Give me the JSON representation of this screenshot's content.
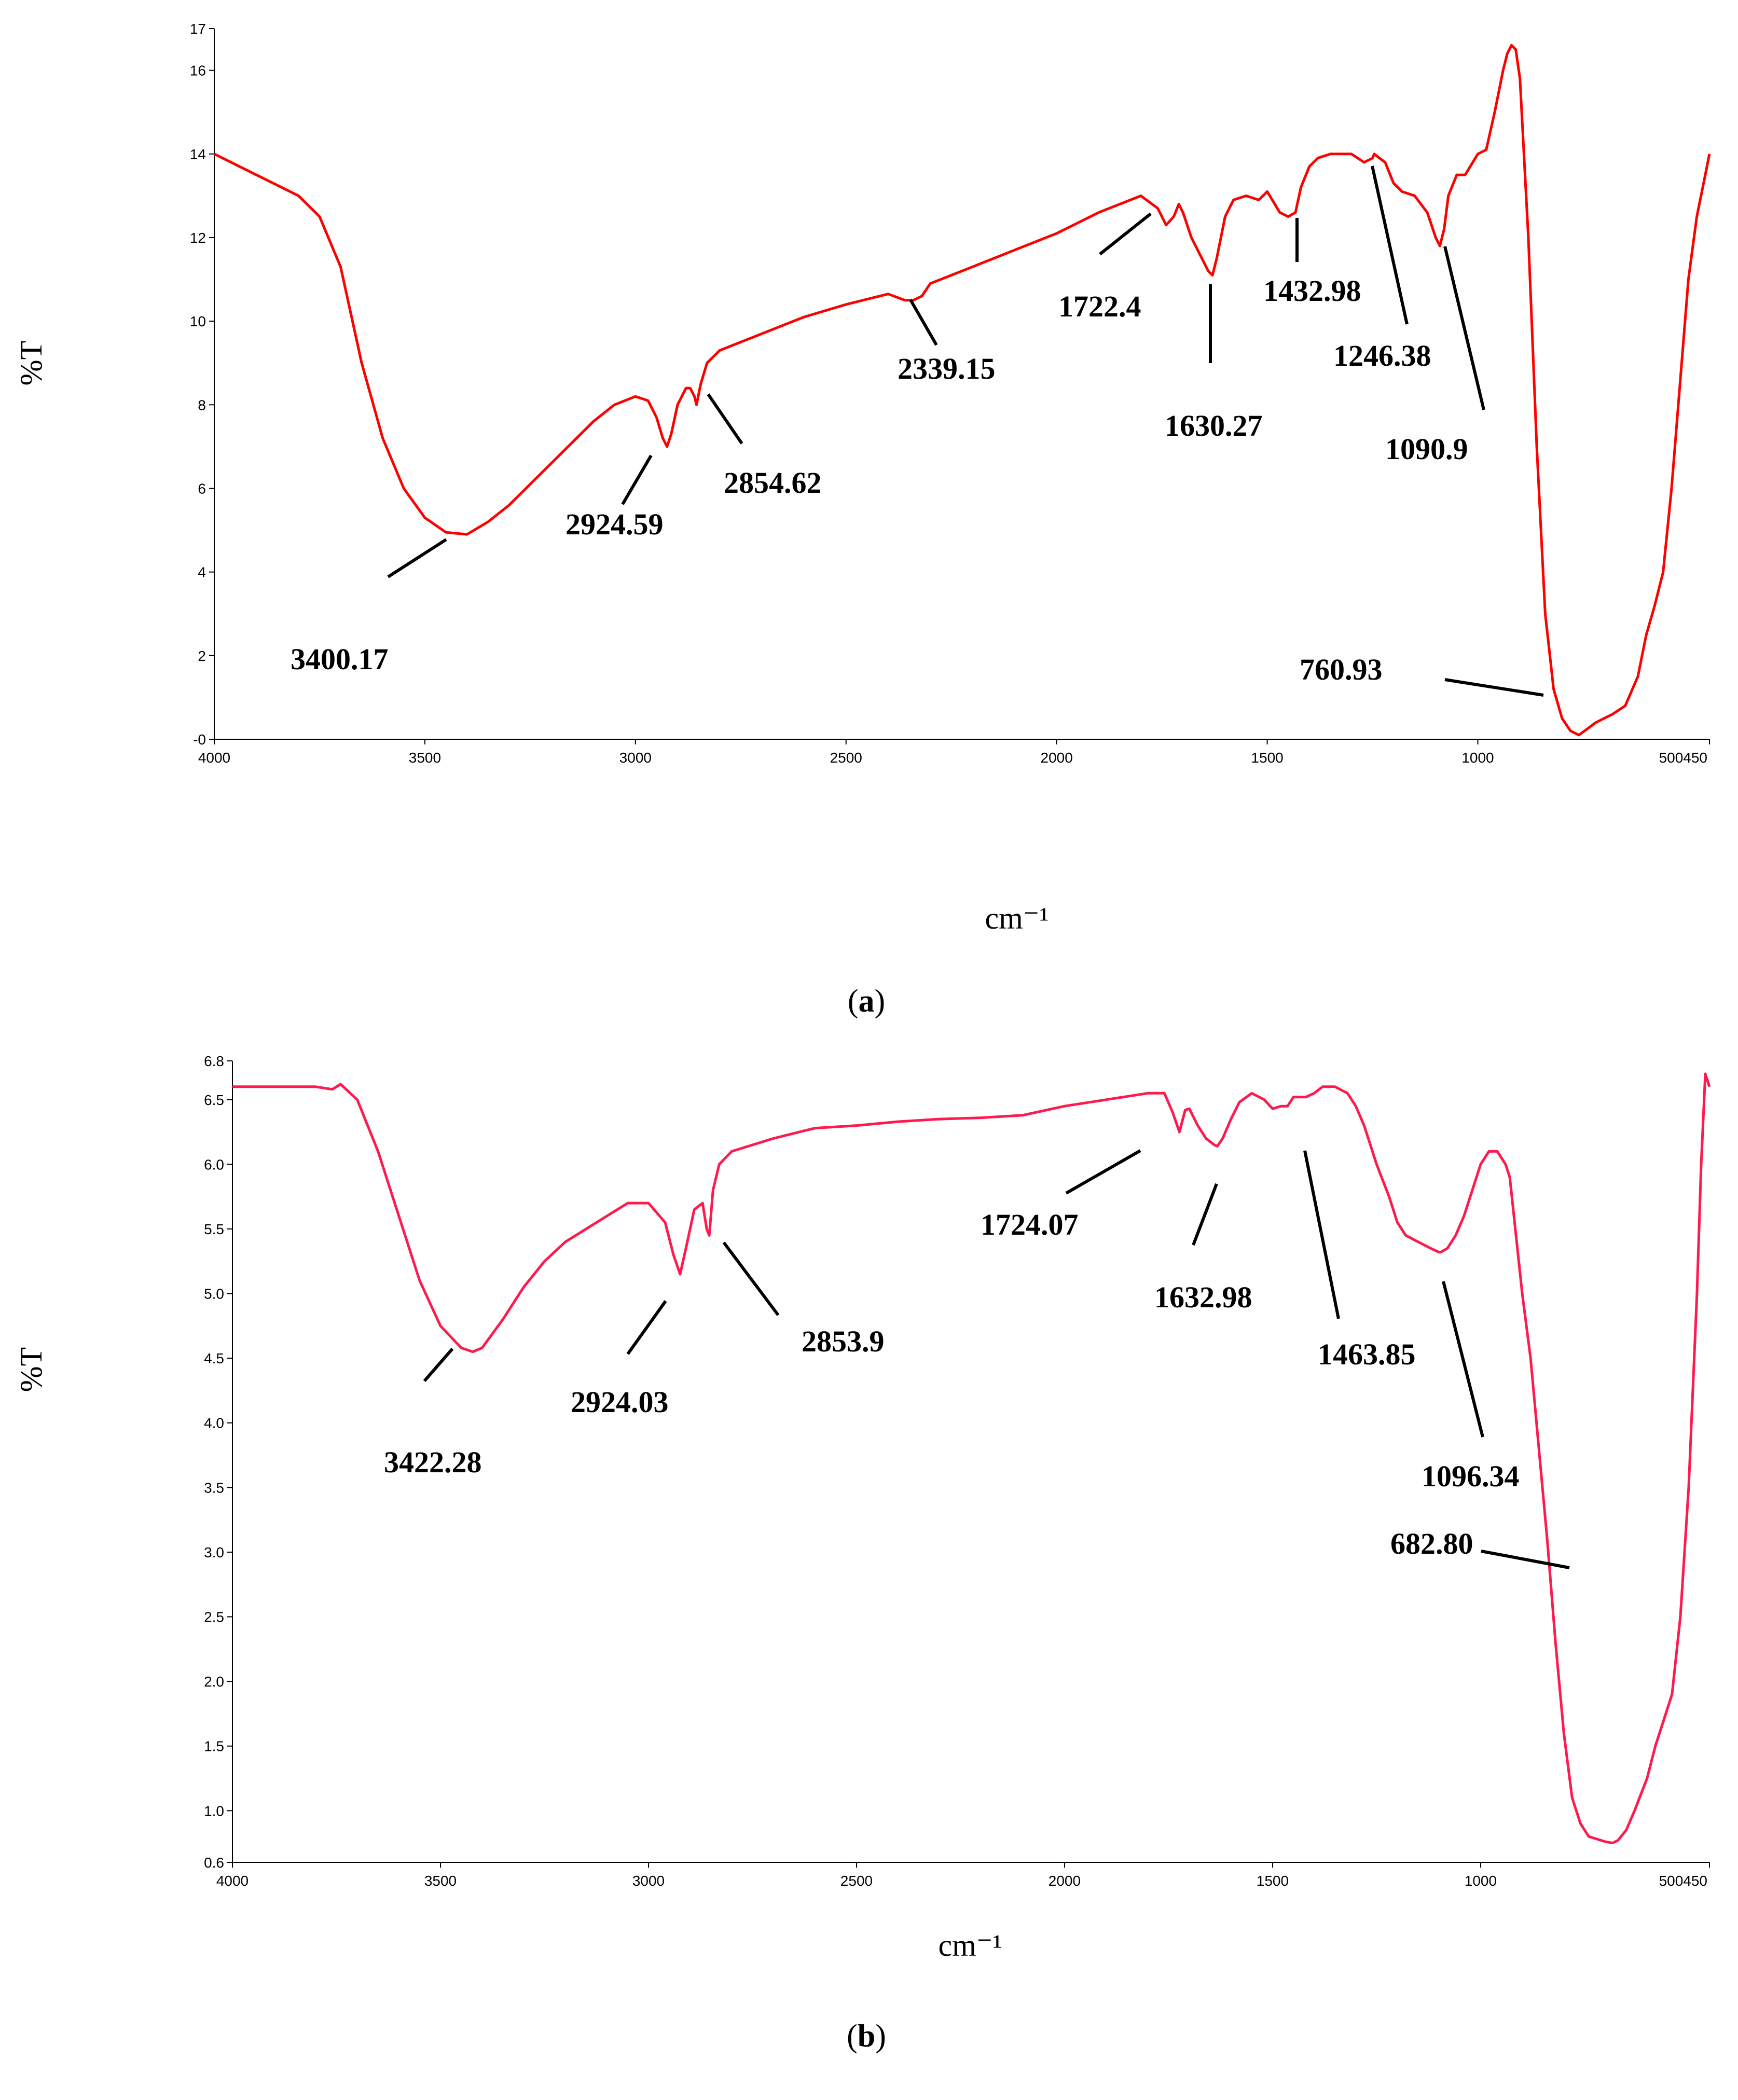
{
  "panel_labels": {
    "a": "a",
    "b": "b",
    "open": "(",
    "close": ")"
  },
  "chart_data": [
    {
      "type": "line",
      "panel": "a",
      "title": "",
      "xlabel": "cm⁻¹",
      "ylabel": "%T",
      "xlim": [
        4000,
        450
      ],
      "ylim": [
        0,
        17
      ],
      "x_ticks": [
        4000,
        3500,
        3000,
        2500,
        2000,
        1500,
        1000,
        500450
      ],
      "x_tick_labels": [
        "4000",
        "3500",
        "3000",
        "2500",
        "2000",
        "1500",
        "1000",
        "500450"
      ],
      "y_ticks": [
        0,
        2,
        4,
        6,
        8,
        10,
        12,
        14,
        16,
        17
      ],
      "y_tick_labels": [
        "-0",
        "2",
        "4",
        "6",
        "8",
        "10",
        "12",
        "14",
        "16",
        "17"
      ],
      "grid": false,
      "color": "#ff0000",
      "series": [
        {
          "x": [
            4000,
            3900,
            3800,
            3750,
            3700,
            3650,
            3600,
            3550,
            3500,
            3450,
            3400,
            3350,
            3300,
            3250,
            3200,
            3150,
            3100,
            3050,
            3000,
            2970,
            2950,
            2935,
            2925,
            2915,
            2900,
            2880,
            2870,
            2860,
            2855,
            2845,
            2830,
            2800,
            2700,
            2600,
            2500,
            2400,
            2360,
            2340,
            2320,
            2300,
            2200,
            2100,
            2000,
            1900,
            1800,
            1760,
            1740,
            1722,
            1710,
            1700,
            1680,
            1660,
            1640,
            1630,
            1620,
            1600,
            1580,
            1550,
            1520,
            1500,
            1470,
            1450,
            1433,
            1420,
            1400,
            1380,
            1350,
            1300,
            1270,
            1250,
            1246,
            1240,
            1220,
            1200,
            1180,
            1150,
            1120,
            1100,
            1090,
            1080,
            1070,
            1050,
            1030,
            1000,
            980,
            960,
            940,
            930,
            920,
            910,
            900,
            880,
            860,
            840,
            820,
            800,
            780,
            760,
            740,
            720,
            700,
            680,
            650,
            620,
            600,
            580,
            560,
            540,
            520,
            500,
            480,
            460,
            450
          ],
          "y": [
            14.0,
            13.5,
            13.0,
            12.5,
            11.3,
            9.0,
            7.2,
            6.0,
            5.3,
            4.95,
            4.9,
            5.2,
            5.6,
            6.1,
            6.6,
            7.1,
            7.6,
            8.0,
            8.2,
            8.1,
            7.7,
            7.2,
            7.0,
            7.3,
            8.0,
            8.4,
            8.4,
            8.2,
            8.0,
            8.5,
            9.0,
            9.3,
            9.7,
            10.1,
            10.4,
            10.65,
            10.5,
            10.5,
            10.6,
            10.9,
            11.3,
            11.7,
            12.1,
            12.6,
            13.0,
            12.7,
            12.3,
            12.5,
            12.8,
            12.6,
            12.0,
            11.6,
            11.2,
            11.1,
            11.5,
            12.5,
            12.9,
            13.0,
            12.9,
            13.1,
            12.6,
            12.5,
            12.6,
            13.2,
            13.7,
            13.9,
            14.0,
            14.0,
            13.8,
            13.9,
            14.0,
            13.95,
            13.8,
            13.3,
            13.1,
            13.0,
            12.6,
            12.0,
            11.8,
            12.2,
            13.0,
            13.5,
            13.5,
            14.0,
            14.1,
            15.0,
            16.0,
            16.4,
            16.6,
            16.5,
            15.8,
            12.0,
            7.0,
            3.0,
            1.2,
            0.5,
            0.2,
            0.1,
            0.25,
            0.4,
            0.5,
            0.6,
            0.8,
            1.5,
            2.5,
            3.2,
            4.0,
            6.0,
            8.5,
            11.0,
            12.5,
            13.5,
            14.0
          ]
        }
      ],
      "annotations": [
        {
          "text": "3400.17"
        },
        {
          "text": "2924.59"
        },
        {
          "text": "2854.62"
        },
        {
          "text": "2339.15"
        },
        {
          "text": "1722.4"
        },
        {
          "text": "1630.27"
        },
        {
          "text": "1432.98"
        },
        {
          "text": "1246.38"
        },
        {
          "text": "1090.9"
        },
        {
          "text": "760.93"
        }
      ]
    },
    {
      "type": "line",
      "panel": "b",
      "title": "",
      "xlabel": "cm⁻¹",
      "ylabel": "%T",
      "xlim": [
        4000,
        450
      ],
      "ylim": [
        0.6,
        6.8
      ],
      "x_ticks": [
        4000,
        3500,
        3000,
        2500,
        2000,
        1500,
        1000,
        500450
      ],
      "x_tick_labels": [
        "4000",
        "3500",
        "3000",
        "2500",
        "2000",
        "1500",
        "1000",
        "500450"
      ],
      "y_ticks": [
        0.6,
        1.0,
        1.5,
        2.0,
        2.5,
        3.0,
        3.5,
        4.0,
        4.5,
        5.0,
        5.5,
        6.0,
        6.5,
        6.8
      ],
      "y_tick_labels": [
        "0.6",
        "1.0",
        "1.5",
        "2.0",
        "2.5",
        "3.0",
        "3.5",
        "4.0",
        "4.5",
        "5.0",
        "5.5",
        "6.0",
        "6.5",
        "6.8"
      ],
      "grid": false,
      "color": "#ff1a4d",
      "series": [
        {
          "x": [
            4000,
            3900,
            3800,
            3760,
            3740,
            3700,
            3650,
            3600,
            3550,
            3500,
            3450,
            3422,
            3400,
            3350,
            3300,
            3250,
            3200,
            3150,
            3100,
            3050,
            3000,
            2960,
            2940,
            2924,
            2910,
            2890,
            2870,
            2860,
            2854,
            2845,
            2830,
            2800,
            2700,
            2600,
            2500,
            2400,
            2300,
            2200,
            2100,
            2000,
            1900,
            1800,
            1760,
            1740,
            1724,
            1710,
            1700,
            1680,
            1660,
            1640,
            1633,
            1620,
            1600,
            1580,
            1550,
            1520,
            1500,
            1480,
            1464,
            1450,
            1420,
            1400,
            1380,
            1350,
            1320,
            1300,
            1280,
            1250,
            1220,
            1200,
            1180,
            1150,
            1120,
            1100,
            1096,
            1080,
            1060,
            1040,
            1020,
            1000,
            980,
            960,
            940,
            930,
            920,
            910,
            900,
            880,
            860,
            840,
            820,
            800,
            780,
            760,
            740,
            720,
            700,
            683,
            670,
            650,
            630,
            600,
            580,
            560,
            540,
            520,
            500,
            480,
            470,
            460,
            455,
            450
          ],
          "y": [
            6.6,
            6.6,
            6.6,
            6.58,
            6.62,
            6.5,
            6.1,
            5.6,
            5.1,
            4.75,
            4.58,
            4.55,
            4.58,
            4.8,
            5.05,
            5.25,
            5.4,
            5.5,
            5.6,
            5.7,
            5.7,
            5.55,
            5.3,
            5.15,
            5.35,
            5.65,
            5.7,
            5.5,
            5.45,
            5.8,
            6.0,
            6.1,
            6.2,
            6.28,
            6.3,
            6.33,
            6.35,
            6.36,
            6.38,
            6.45,
            6.5,
            6.55,
            6.55,
            6.4,
            6.25,
            6.42,
            6.43,
            6.3,
            6.2,
            6.15,
            6.14,
            6.2,
            6.35,
            6.48,
            6.55,
            6.5,
            6.43,
            6.45,
            6.45,
            6.52,
            6.52,
            6.55,
            6.6,
            6.6,
            6.55,
            6.45,
            6.3,
            6.0,
            5.75,
            5.55,
            5.45,
            5.4,
            5.35,
            5.32,
            5.32,
            5.35,
            5.45,
            5.6,
            5.8,
            6.0,
            6.1,
            6.1,
            6.0,
            5.9,
            5.6,
            5.3,
            5.0,
            4.5,
            3.8,
            3.1,
            2.3,
            1.6,
            1.1,
            0.9,
            0.8,
            0.78,
            0.76,
            0.75,
            0.77,
            0.85,
            1.0,
            1.25,
            1.5,
            1.7,
            1.9,
            2.5,
            3.5,
            5.0,
            6.0,
            6.7,
            6.65,
            6.6
          ]
        }
      ],
      "annotations": [
        {
          "text": "3422.28"
        },
        {
          "text": "2924.03"
        },
        {
          "text": "2853.9"
        },
        {
          "text": "1724.07"
        },
        {
          "text": "1632.98"
        },
        {
          "text": "1463.85"
        },
        {
          "text": "1096.34"
        },
        {
          "text": "682.80"
        }
      ]
    }
  ]
}
